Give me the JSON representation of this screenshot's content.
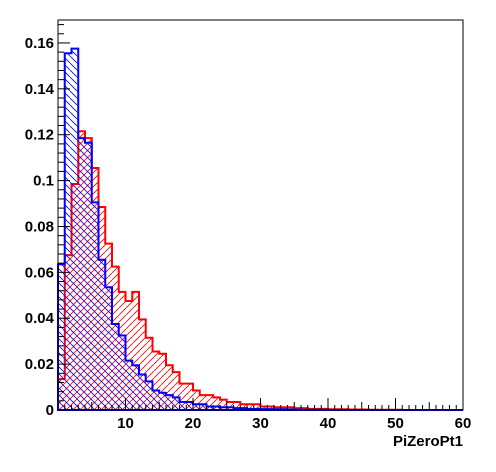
{
  "chart_data": {
    "type": "histogram",
    "title": "",
    "xlabel": "PiZeroPt1",
    "ylabel": "",
    "xlim": [
      0,
      60
    ],
    "ylim": [
      0,
      0.17
    ],
    "x_ticks": [
      10,
      20,
      30,
      40,
      50,
      60
    ],
    "y_ticks": [
      0,
      0.02,
      0.04,
      0.06,
      0.08,
      0.1,
      0.12,
      0.14,
      0.16
    ],
    "x_tick_labels": [
      "10",
      "20",
      "30",
      "40",
      "50",
      "60"
    ],
    "y_tick_labels": [
      "0",
      "0.02",
      "0.04",
      "0.06",
      "0.08",
      "0.1",
      "0.12",
      "0.14",
      "0.16"
    ],
    "bin_edges": [
      0,
      1,
      2,
      3,
      4,
      5,
      6,
      7,
      8,
      9,
      10,
      11,
      12,
      13,
      14,
      15,
      16,
      17,
      18,
      19,
      20,
      21,
      22,
      23,
      24,
      25,
      26,
      27,
      28,
      29,
      30,
      31,
      32,
      33,
      34,
      35,
      36,
      37,
      38,
      39,
      40,
      41,
      42,
      43,
      44,
      45,
      46,
      47,
      48,
      49,
      50,
      51,
      52,
      53,
      54,
      55,
      56,
      57,
      58,
      59,
      60
    ],
    "grid": false,
    "series": [
      {
        "color": "#ff0000",
        "hatch": "forward",
        "values": [
          0.0135,
          0.0675,
          0.0985,
          0.1215,
          0.1185,
          0.1055,
          0.0885,
          0.0725,
          0.0625,
          0.0515,
          0.0475,
          0.0515,
          0.0395,
          0.0315,
          0.0255,
          0.0245,
          0.0195,
          0.0165,
          0.0115,
          0.0115,
          0.0085,
          0.0065,
          0.0065,
          0.0055,
          0.0045,
          0.0035,
          0.0035,
          0.0025,
          0.0025,
          0.0025,
          0.0015,
          0.0015,
          0.0012,
          0.0012,
          0.0012,
          0.0008,
          0.0008,
          0.0005,
          0.0005,
          0.0005,
          0.0003,
          0.0003,
          0.0003,
          0.0002,
          0.0002,
          0.0002,
          0.0001,
          0.0001,
          0.0001,
          0.0001,
          0.0001,
          0.0,
          0.0,
          0.0,
          0.0,
          0.0,
          0.0,
          0.0,
          0.0,
          0.0
        ]
      },
      {
        "color": "#0000ff",
        "hatch": "backward",
        "values": [
          0.0635,
          0.1555,
          0.1575,
          0.1185,
          0.1165,
          0.0905,
          0.0655,
          0.0535,
          0.0375,
          0.0325,
          0.0215,
          0.0195,
          0.0155,
          0.0125,
          0.0085,
          0.0075,
          0.0065,
          0.0055,
          0.0035,
          0.0035,
          0.0025,
          0.0025,
          0.0015,
          0.0015,
          0.0012,
          0.0012,
          0.0008,
          0.0008,
          0.0005,
          0.0005,
          0.0004,
          0.0004,
          0.0003,
          0.0003,
          0.0002,
          0.0002,
          0.0001,
          0.0001,
          0.0001,
          0.0001,
          0.0,
          0.0,
          0.0,
          0.0,
          0.0,
          0.0,
          0.0,
          0.0,
          0.0,
          0.0,
          0.0,
          0.0,
          0.0,
          0.0,
          0.0,
          0.0,
          0.0,
          0.0,
          0.0,
          0.0
        ]
      }
    ]
  }
}
